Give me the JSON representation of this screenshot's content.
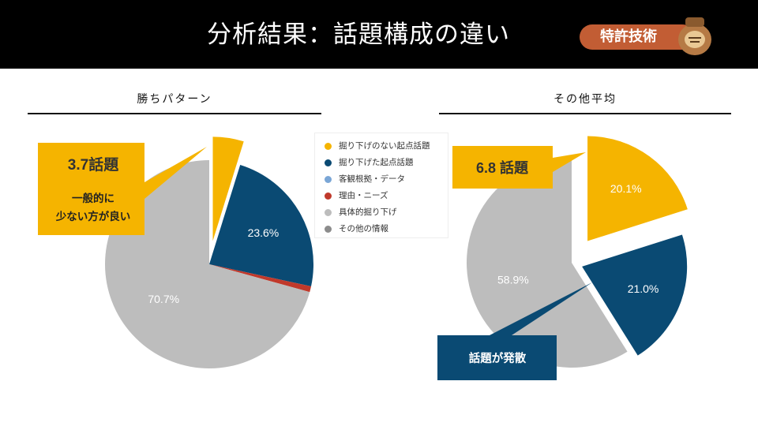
{
  "header": {
    "title": "分析結果：話題構成の違い",
    "badge": "特許技術",
    "badge_icon": "jar-mascot-icon"
  },
  "panels": {
    "left": {
      "title": "勝ちパターン",
      "callout_main": "3.7話題",
      "callout_line1": "一般的に",
      "callout_line2": "少ない方が良い"
    },
    "right": {
      "title": "その他平均",
      "callout_main": "6.8 話題",
      "callout_bottom": "話題が発散"
    }
  },
  "legend": [
    {
      "label": "掘り下げのない起点話題",
      "color": "#f5b400"
    },
    {
      "label": "掘り下げた起点話題",
      "color": "#0a4a73"
    },
    {
      "label": "客観根拠・データ",
      "color": "#7aa6d6"
    },
    {
      "label": "理由・ニーズ",
      "color": "#c0392b"
    },
    {
      "label": "具体的掘り下げ",
      "color": "#bdbdbd"
    },
    {
      "label": "その他の情報",
      "color": "#8c8c8c"
    }
  ],
  "chart_data": [
    {
      "type": "pie",
      "title": "勝ちパターン",
      "categories": [
        "掘り下げのない起点話題",
        "掘り下げた起点話題",
        "客観根拠・データ",
        "理由・ニーズ",
        "具体的掘り下げ",
        "その他の情報"
      ],
      "values": [
        4.8,
        23.6,
        0,
        0.9,
        70.7,
        0
      ],
      "value_labels": [
        "",
        "23.6%",
        "",
        "",
        "70.7%",
        ""
      ],
      "exploded": [
        "掘り下げのない起点話題"
      ],
      "legend_position": "right"
    },
    {
      "type": "pie",
      "title": "その他平均",
      "categories": [
        "掘り下げのない起点話題",
        "掘り下げた起点話題",
        "客観根拠・データ",
        "理由・ニーズ",
        "具体的掘り下げ",
        "その他の情報"
      ],
      "values": [
        20.1,
        21.0,
        0,
        0,
        58.9,
        0
      ],
      "value_labels": [
        "20.1%",
        "21.0%",
        "",
        "",
        "58.9%",
        ""
      ],
      "exploded": [
        "掘り下げのない起点話題",
        "掘り下げた起点話題"
      ]
    }
  ]
}
